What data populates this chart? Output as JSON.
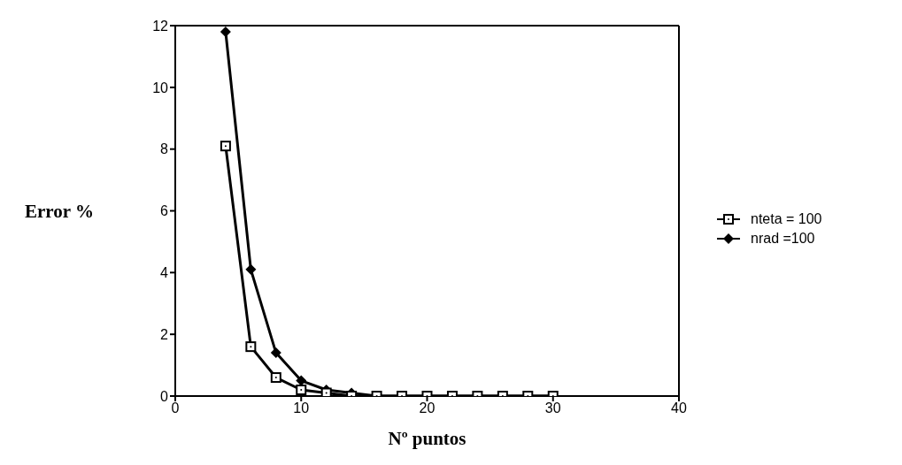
{
  "chart_data": {
    "type": "line",
    "xlabel": "Nº puntos",
    "ylabel": "Error %",
    "xlim": [
      0,
      40
    ],
    "xticks": [
      0,
      10,
      20,
      30,
      40
    ],
    "ylim": [
      0,
      12
    ],
    "yticks": [
      0,
      2,
      4,
      6,
      8,
      10,
      12
    ],
    "grid": false,
    "legend": "right",
    "line_style": "solid",
    "x": [
      4,
      6,
      8,
      10,
      12,
      14,
      16,
      18,
      20,
      22,
      24,
      26,
      28,
      30
    ],
    "series": [
      {
        "name": "nteta = 100",
        "color": "#000000",
        "marker": "square",
        "values": [
          8.1,
          1.6,
          0.6,
          0.2,
          0.1,
          0,
          0,
          0,
          0,
          0,
          0,
          0,
          0,
          0
        ]
      },
      {
        "name": "nrad =100",
        "color": "#000000",
        "marker": "diamond",
        "values": [
          11.8,
          4.1,
          1.4,
          0.5,
          0.2,
          0.1,
          0,
          0,
          0,
          0,
          0,
          0,
          0,
          0
        ]
      }
    ]
  }
}
